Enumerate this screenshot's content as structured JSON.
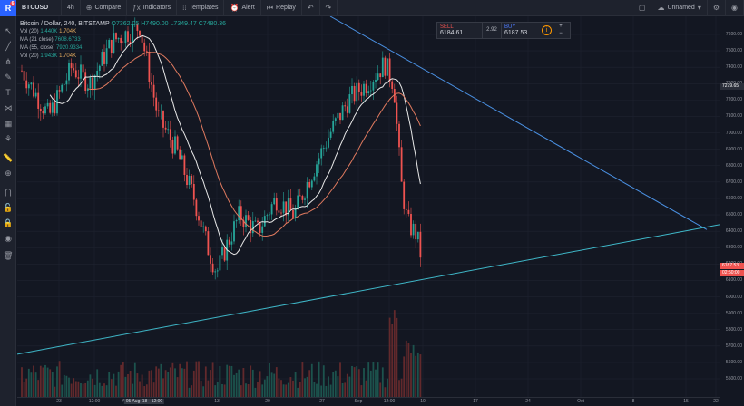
{
  "toolbar": {
    "logo_letter": "R",
    "notifications": "6",
    "symbol": "BTCUSD",
    "interval": "4h",
    "compare": "Compare",
    "indicators": "Indicators",
    "templates": "Templates",
    "alert": "Alert",
    "replay": "Replay",
    "layout_name": "Unnamed"
  },
  "legend": {
    "title": "Bitcoin / Dollar, 240, BITSTAMP",
    "ohlc": {
      "o": "O7362.05",
      "h": "H7490.00",
      "l": "L7349.47",
      "c": "C7480.36"
    },
    "indicators": [
      {
        "name": "Vol (20)",
        "v1": "1.440K",
        "v2": "1.704K"
      },
      {
        "name": "MA (21 close)",
        "v1": "7608.6733",
        "v2": ""
      },
      {
        "name": "MA (55, close)",
        "v1": "7920.9334",
        "v2": ""
      },
      {
        "name": "Vol (20)",
        "v1": "1.943K",
        "v2": "1.704K"
      }
    ]
  },
  "trade": {
    "sell_label": "SELL",
    "sell_price": "6184.61",
    "spread": "2.92",
    "buy_label": "BUY",
    "buy_price": "6187.53"
  },
  "price_axis": {
    "labels": [
      "7600.00",
      "7500.00",
      "7400.00",
      "7300.00",
      "7200.00",
      "7100.00",
      "7000.00",
      "6900.00",
      "6800.00",
      "6700.00",
      "6600.00",
      "6500.00",
      "6400.00",
      "6300.00",
      "6200.00",
      "6100.00",
      "6000.00",
      "5900.00",
      "5800.00",
      "5700.00",
      "5600.00",
      "5500.00"
    ],
    "hline_tag": "7279.65",
    "last_price_tag": "6187.53",
    "countdown_tag": "02:50:00"
  },
  "time_axis": {
    "labels": [
      "23",
      "12:00",
      "Aug",
      "13",
      "20",
      "27",
      "Sep",
      "12:00",
      "10",
      "17",
      "24",
      "Oct",
      "8",
      "15",
      "22"
    ],
    "crosshair_label": "05 Aug '18 - 12:00"
  },
  "colors": {
    "up": "#26a69a",
    "down": "#ef5350",
    "ma_fast": "#e8e8e8",
    "ma_slow": "#e07a5f",
    "trend_upper": "#4a90e2",
    "trend_lower": "#3fb8c9",
    "price_line": "#ef5350"
  },
  "chart_data": {
    "type": "candlestick",
    "ylim": [
      5400,
      7650
    ],
    "trendlines": [
      {
        "name": "resistance",
        "from": [
          0.45,
          7620
        ],
        "to": [
          1.0,
          6410
        ]
      },
      {
        "name": "support",
        "from": [
          0.0,
          5650
        ],
        "to": [
          1.0,
          6420
        ]
      }
    ],
    "last_price": 6187.53
  }
}
